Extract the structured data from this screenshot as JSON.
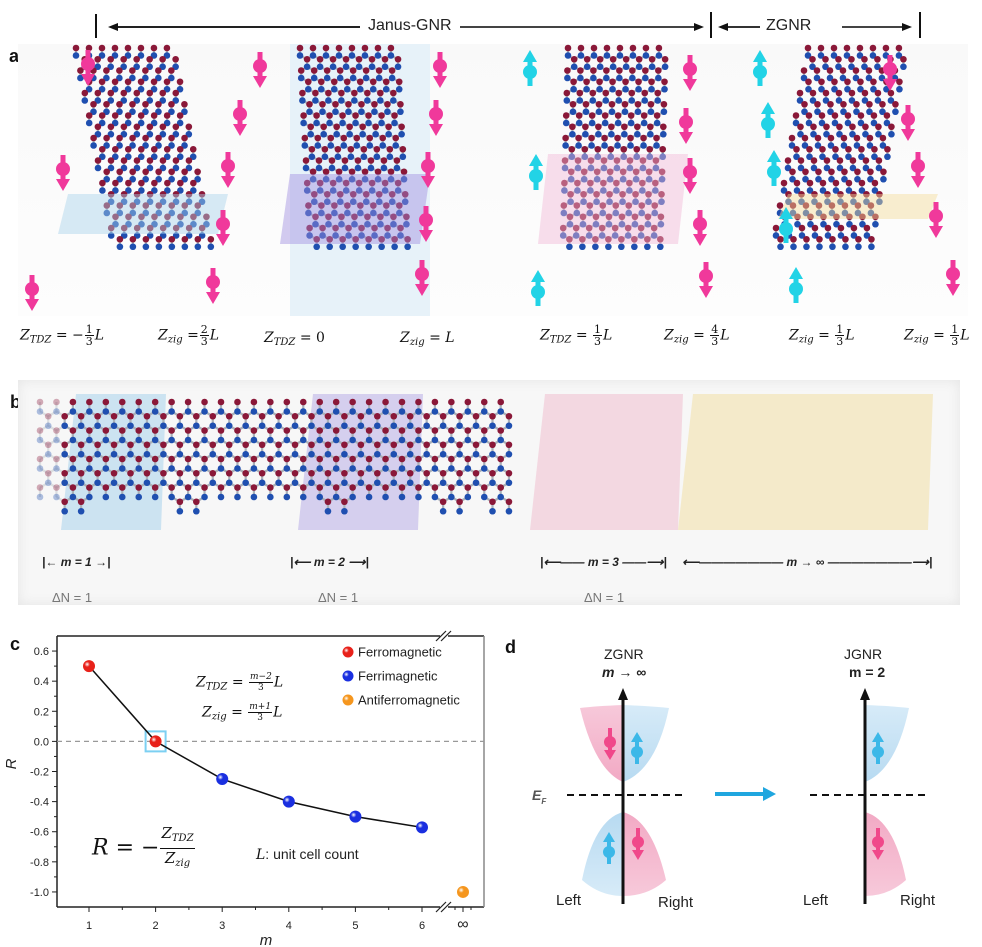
{
  "header": {
    "janus_label": "Janus-GNR",
    "zgnr_label": "ZGNR"
  },
  "panel_a": {
    "label": "a",
    "ribbons": [
      {
        "name": "janus-m1",
        "highlight_color": "#a9d3ec",
        "left_spin": "down",
        "right_spin": "down",
        "left_eq": {
          "symbol": "Z",
          "sub": "TDZ",
          "sign": "−",
          "num": "1",
          "den": "3",
          "suffix": "L"
        },
        "right_eq": {
          "symbol": "Z",
          "sub": "zig",
          "sign": "",
          "num": "2",
          "den": "3",
          "suffix": "L"
        }
      },
      {
        "name": "janus-m2",
        "highlight_color": "#9f8fe0",
        "left_spin": "none",
        "right_spin": "down",
        "left_eq_text": "= 0",
        "right_eq_text": "=  L"
      },
      {
        "name": "janus-m3",
        "highlight_color": "#f2b9d6",
        "left_spin": "up",
        "right_spin": "down",
        "left_eq": {
          "symbol": "Z",
          "sub": "TDZ",
          "sign": "",
          "num": "1",
          "den": "3",
          "suffix": "L"
        },
        "right_eq": {
          "symbol": "Z",
          "sub": "zig",
          "sign": "",
          "num": "4",
          "den": "3",
          "suffix": "L"
        }
      },
      {
        "name": "zgnr",
        "highlight_color": "#f3dc9a",
        "left_spin": "up",
        "right_spin": "down",
        "left_eq": {
          "symbol": "Z",
          "sub": "zig",
          "sign": "",
          "num": "1",
          "den": "3",
          "suffix": "L"
        },
        "right_eq": {
          "symbol": "Z",
          "sub": "zig",
          "sign": "",
          "num": "1",
          "den": "3",
          "suffix": "L"
        }
      }
    ],
    "eq_labels": {
      "z": "Z",
      "tdz": "TDZ",
      "zig": "zig",
      "eq": "=",
      "minus": "−",
      "L": "L",
      "zero": "0",
      "one": "1",
      "two": "2",
      "three": "3",
      "four": "4"
    }
  },
  "panel_b": {
    "label": "b",
    "segments": [
      {
        "label": "m = 1",
        "color": "#a9d3ec"
      },
      {
        "label": "m = 2",
        "color": "#b9aee8"
      },
      {
        "label": "m = 3",
        "color": "#f0bfd0"
      },
      {
        "label": "m → ∞",
        "color": "#f2e0a6"
      }
    ],
    "delta_n": [
      "ΔN = 1",
      "ΔN = 1",
      "ΔN = 1"
    ]
  },
  "panel_c": {
    "label": "c",
    "formula_tdz": {
      "lhs_sub": "TDZ",
      "num": "m−2",
      "den": "3"
    },
    "formula_zig": {
      "lhs_sub": "zig",
      "num": "m+1",
      "den": "3"
    },
    "formula_R": {
      "lhs": "R",
      "num_sub": "TDZ",
      "den_sub": "zig"
    },
    "unit_note": {
      "symbol": "L",
      "text": ": unit cell count"
    }
  },
  "chart_data": {
    "type": "scatter",
    "title": "",
    "xlabel": "m",
    "ylabel": "R",
    "x_ticks": [
      "1",
      "2",
      "3",
      "4",
      "5",
      "6",
      "∞"
    ],
    "y_ticks": [
      "0.6",
      "0.4",
      "0.2",
      "0.0",
      "-0.2",
      "-0.4",
      "-0.6",
      "-0.8",
      "-1.0"
    ],
    "ylim": [
      -1.1,
      0.7
    ],
    "xlim": [
      0.5,
      6.3
    ],
    "axis_break": "between 6 and ∞",
    "reference_line": {
      "y": 0.0,
      "style": "dashed"
    },
    "highlight_point": {
      "x": 2,
      "y": 0.0
    },
    "legend_position": "top-right",
    "series": [
      {
        "name": "Ferromagnetic",
        "color": "#e8211a",
        "points": [
          {
            "x": 1,
            "y": 0.5
          },
          {
            "x": 2,
            "y": 0.0
          }
        ]
      },
      {
        "name": "Ferrimagnetic",
        "color": "#1a2fe0",
        "points": [
          {
            "x": 3,
            "y": -0.25
          },
          {
            "x": 4,
            "y": -0.4
          },
          {
            "x": 5,
            "y": -0.5
          },
          {
            "x": 6,
            "y": -0.571
          }
        ]
      },
      {
        "name": "Antiferromagnetic",
        "color": "#f5961e",
        "points": [
          {
            "x": "∞",
            "y": -1.0
          }
        ]
      }
    ],
    "connected_line": [
      {
        "x": 1,
        "y": 0.5
      },
      {
        "x": 2,
        "y": 0.0
      },
      {
        "x": 3,
        "y": -0.25
      },
      {
        "x": 4,
        "y": -0.4
      },
      {
        "x": 5,
        "y": -0.5
      },
      {
        "x": 6,
        "y": -0.571
      }
    ]
  },
  "panel_d": {
    "label": "d",
    "left_title": "ZGNR",
    "left_subtitle": "m → ∞",
    "right_title": "JGNR",
    "right_subtitle": "m = 2",
    "fermi_label": "E",
    "fermi_sub": "F",
    "left_axis_left": "Left",
    "left_axis_right": "Right",
    "right_axis_left": "Left",
    "right_axis_right": "Right",
    "colors": {
      "spin_down": "#f0488a",
      "spin_up": "#3cb8e8",
      "pink_band": "#f4b9cf",
      "blue_band": "#c3e1f4",
      "arrow": "#1fa6df"
    }
  }
}
